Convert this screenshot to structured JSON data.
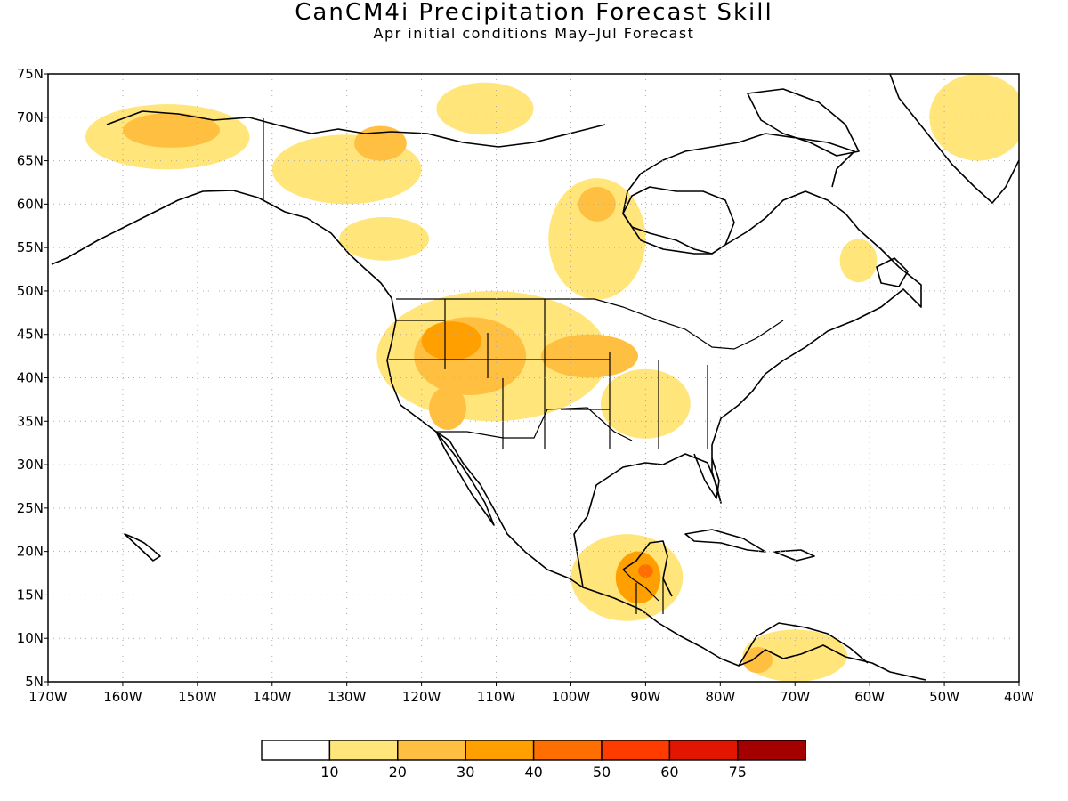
{
  "header": {
    "title": "CanCM4i Precipitation Forecast Skill",
    "subtitle": "Apr initial conditions  May–Jul Forecast"
  },
  "map": {
    "projection": "lat-lon",
    "lon_range": [
      -170,
      -40
    ],
    "lat_range": [
      5,
      75
    ],
    "lon_ticks": [
      "170W",
      "160W",
      "150W",
      "140W",
      "130W",
      "120W",
      "110W",
      "100W",
      "90W",
      "80W",
      "70W",
      "60W",
      "50W",
      "40W"
    ],
    "lat_ticks": [
      "5N",
      "10N",
      "15N",
      "20N",
      "25N",
      "30N",
      "35N",
      "40N",
      "45N",
      "50N",
      "55N",
      "60N",
      "65N",
      "70N",
      "75N"
    ],
    "grid": "dotted",
    "regions": [
      {
        "name": "alaska-north-slope",
        "level": 1,
        "lon": [
          -165,
          -143
        ],
        "lat": [
          64,
          71.5
        ]
      },
      {
        "name": "alaska-core",
        "level": 2,
        "lon": [
          -160,
          -147
        ],
        "lat": [
          66.5,
          70.5
        ]
      },
      {
        "name": "yukon-nwt",
        "level": 1,
        "lon": [
          -140,
          -120
        ],
        "lat": [
          60,
          68
        ]
      },
      {
        "name": "nwt-arctic-coast",
        "level": 2,
        "lon": [
          -129,
          -122
        ],
        "lat": [
          65,
          69
        ]
      },
      {
        "name": "arctic-islands",
        "level": 1,
        "lon": [
          -118,
          -105
        ],
        "lat": [
          68,
          74
        ]
      },
      {
        "name": "bc-interior",
        "level": 1,
        "lon": [
          -131,
          -119
        ],
        "lat": [
          53.5,
          58.5
        ]
      },
      {
        "name": "hudson-bay-west",
        "level": 1,
        "lon": [
          -103,
          -90
        ],
        "lat": [
          49,
          63
        ]
      },
      {
        "name": "hudson-bay-west-core",
        "level": 2,
        "lon": [
          -99,
          -94
        ],
        "lat": [
          58,
          62
        ]
      },
      {
        "name": "greenland",
        "level": 1,
        "lon": [
          -52,
          -39
        ],
        "lat": [
          65,
          75
        ]
      },
      {
        "name": "labrador",
        "level": 1,
        "lon": [
          -64,
          -59
        ],
        "lat": [
          51,
          56
        ]
      },
      {
        "name": "great-basin-rockies",
        "level": 1,
        "lon": [
          -126,
          -95
        ],
        "lat": [
          35,
          50
        ]
      },
      {
        "name": "great-basin-core",
        "level": 2,
        "lon": [
          -121,
          -106
        ],
        "lat": [
          38,
          47
        ]
      },
      {
        "name": "idaho-max",
        "level": 3,
        "lon": [
          -120,
          -112
        ],
        "lat": [
          42,
          46.5
        ]
      },
      {
        "name": "nevada-south",
        "level": 2,
        "lon": [
          -119,
          -114
        ],
        "lat": [
          34,
          39
        ]
      },
      {
        "name": "plains-iowa",
        "level": 2,
        "lon": [
          -104,
          -91
        ],
        "lat": [
          40,
          45
        ]
      },
      {
        "name": "midwest-ohio-valley",
        "level": 1,
        "lon": [
          -96,
          -84
        ],
        "lat": [
          33,
          41
        ]
      },
      {
        "name": "southern-mexico",
        "level": 1,
        "lon": [
          -100,
          -85
        ],
        "lat": [
          12,
          22
        ]
      },
      {
        "name": "guatemala-yucatan",
        "level": 3,
        "lon": [
          -94,
          -88
        ],
        "lat": [
          14,
          20
        ]
      },
      {
        "name": "yucatan-max",
        "level": 4,
        "lon": [
          -91,
          -89
        ],
        "lat": [
          17,
          18.5
        ]
      },
      {
        "name": "venezuela-colombia",
        "level": 1,
        "lon": [
          -77,
          -63
        ],
        "lat": [
          5,
          11
        ]
      },
      {
        "name": "colombia-core",
        "level": 2,
        "lon": [
          -77,
          -73
        ],
        "lat": [
          6,
          9
        ]
      }
    ]
  },
  "legend": {
    "labels": [
      "10",
      "20",
      "30",
      "40",
      "50",
      "60",
      "75"
    ],
    "colors": [
      "#ffffff",
      "#ffe57a",
      "#ffc042",
      "#ffa000",
      "#ff6e00",
      "#ff3c00",
      "#e11500",
      "#a50000"
    ]
  }
}
